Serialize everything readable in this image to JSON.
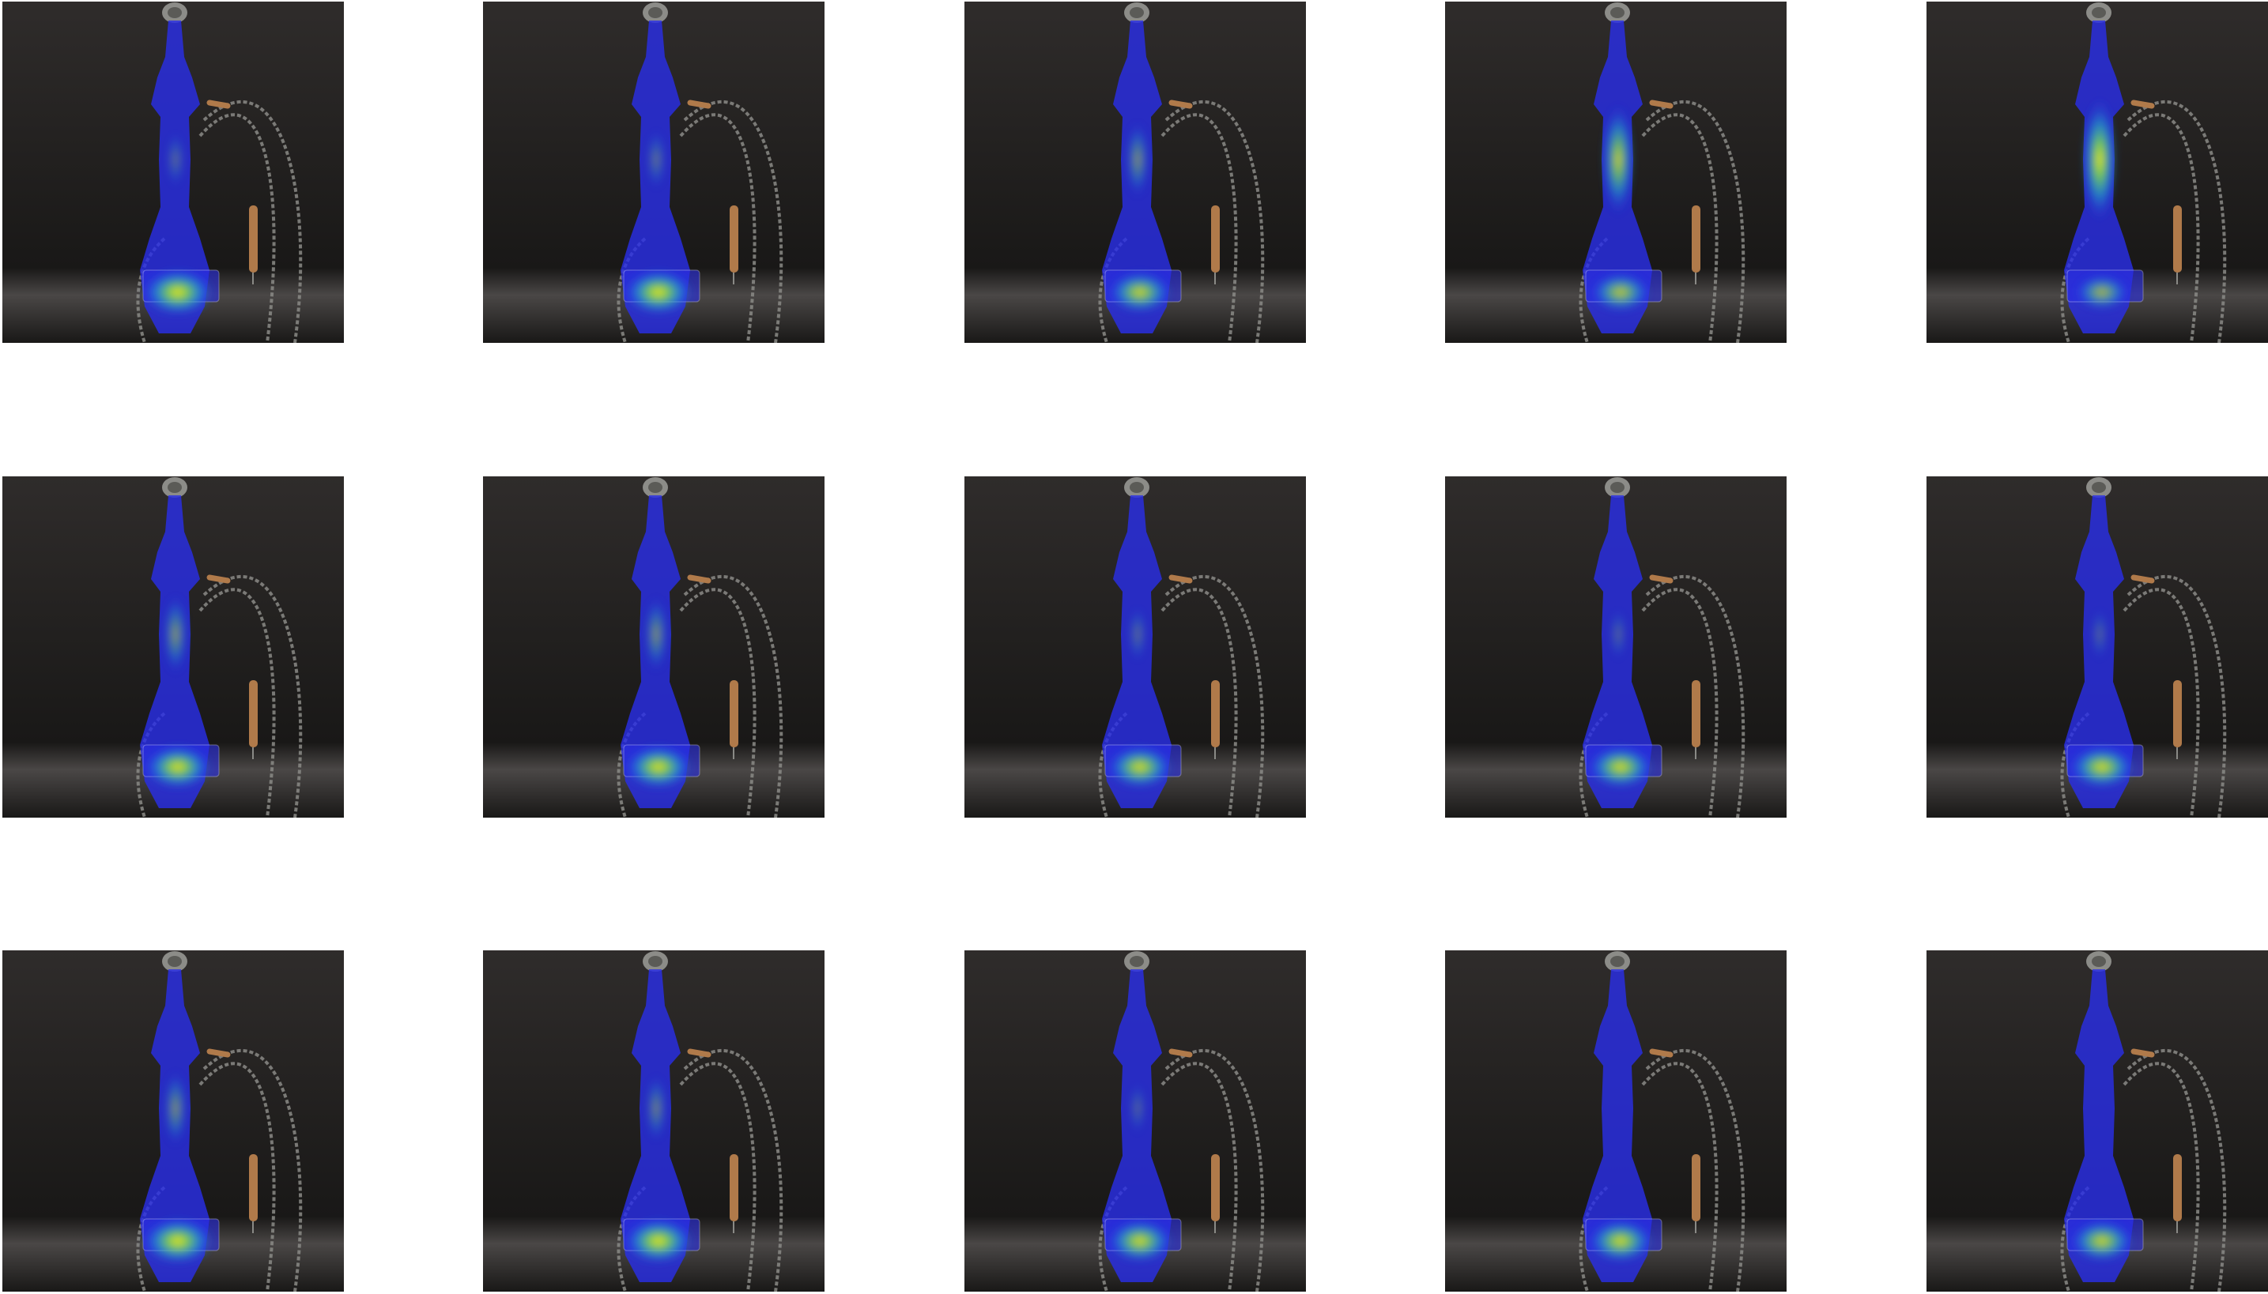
{
  "figure": {
    "rows": 3,
    "cols": 5,
    "background_color": "#ffffff",
    "scene_colors": {
      "backdrop_top": "#2f2c2b",
      "backdrop_bottom": "#191817",
      "floor_band": "#4a4746",
      "hose": "#8a8a86",
      "mouthpiece": "#b07a4a",
      "bowl": "#8c8c88"
    },
    "heatmap_colors": {
      "mask": "#2a2ee6",
      "mid": "#1fb3c9",
      "high": "#7ad64a",
      "peak": "#f5e31f"
    },
    "tiles": [
      {
        "row": 0,
        "col": 0,
        "base_intensity": 1.0,
        "neck_intensity": 0.15
      },
      {
        "row": 0,
        "col": 1,
        "base_intensity": 0.95,
        "neck_intensity": 0.2
      },
      {
        "row": 0,
        "col": 2,
        "base_intensity": 0.8,
        "neck_intensity": 0.4
      },
      {
        "row": 0,
        "col": 3,
        "base_intensity": 0.7,
        "neck_intensity": 0.85
      },
      {
        "row": 0,
        "col": 4,
        "base_intensity": 0.55,
        "neck_intensity": 1.0
      },
      {
        "row": 1,
        "col": 0,
        "base_intensity": 0.9,
        "neck_intensity": 0.45
      },
      {
        "row": 1,
        "col": 1,
        "base_intensity": 0.9,
        "neck_intensity": 0.4
      },
      {
        "row": 1,
        "col": 2,
        "base_intensity": 0.85,
        "neck_intensity": 0.15
      },
      {
        "row": 1,
        "col": 3,
        "base_intensity": 0.85,
        "neck_intensity": 0.1
      },
      {
        "row": 1,
        "col": 4,
        "base_intensity": 0.85,
        "neck_intensity": 0.1
      },
      {
        "row": 2,
        "col": 0,
        "base_intensity": 1.0,
        "neck_intensity": 0.4
      },
      {
        "row": 2,
        "col": 1,
        "base_intensity": 0.95,
        "neck_intensity": 0.3
      },
      {
        "row": 2,
        "col": 2,
        "base_intensity": 0.85,
        "neck_intensity": 0.1
      },
      {
        "row": 2,
        "col": 3,
        "base_intensity": 0.85,
        "neck_intensity": 0.05
      },
      {
        "row": 2,
        "col": 4,
        "base_intensity": 0.8,
        "neck_intensity": 0.05
      }
    ]
  }
}
